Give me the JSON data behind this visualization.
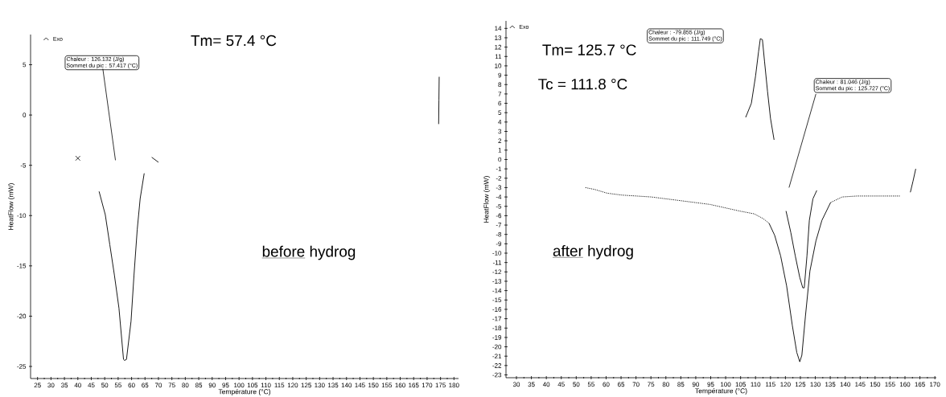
{
  "chart_data": [
    {
      "type": "line",
      "xlabel": "Température (°C)",
      "ylabel": "HeatFlow (mW)",
      "xlim": [
        22.4,
        181.7
      ],
      "ylim": [
        -26.2,
        8
      ],
      "xticks": [
        25,
        30,
        35,
        40,
        45,
        50,
        55,
        60,
        65,
        70,
        75,
        80,
        85,
        90,
        95,
        100,
        105,
        110,
        115,
        120,
        125,
        130,
        135,
        140,
        145,
        150,
        155,
        160,
        165,
        170,
        175,
        180
      ],
      "yticks": [
        -25,
        -20,
        -15,
        -10,
        -5,
        0,
        5
      ],
      "marker": "none",
      "line_style": "solid",
      "series": [
        {
          "color": "#000000",
          "x": [
            47.9,
            50.2,
            51.9,
            53.6,
            55.3,
            57.0,
            57.4,
            58.1,
            59.8,
            60.9,
            62.1,
            63.2,
            64.7
          ],
          "values": [
            -7.6,
            -9.9,
            -12.9,
            -15.9,
            -19.2,
            -24.3,
            -24.4,
            -24.3,
            -20.5,
            -15.9,
            -11.4,
            -8.3,
            -5.8
          ]
        },
        {
          "color": "#000000",
          "x": [
            174.3,
            174.4,
            174.5
          ],
          "values": [
            -0.9,
            1.5,
            3.8
          ]
        },
        {
          "color": "#000000",
          "x": [
            67.5,
            70.0
          ],
          "values": [
            -4.2,
            -4.7
          ]
        },
        {
          "type": "scatter",
          "marker": "cross",
          "color": "#000000",
          "x": [
            40
          ],
          "values": [
            -4.3
          ]
        }
      ],
      "annotations": [
        "Tm= 57.4 °C",
        "before",
        "hydrog",
        "Chaleur :  126.132 (J/g)",
        "Sommet du pic :  57.417 (°C)",
        "Exo"
      ]
    },
    {
      "type": "line",
      "xlabel": "Température (°C)",
      "ylabel": "HeatFlow (mW)",
      "xlim": [
        26.5,
        170.5
      ],
      "ylim": [
        -23.3,
        14.8
      ],
      "xticks": [
        30,
        35,
        40,
        45,
        50,
        55,
        60,
        65,
        70,
        75,
        80,
        85,
        90,
        95,
        100,
        105,
        110,
        115,
        120,
        125,
        130,
        135,
        140,
        145,
        150,
        155,
        160,
        165,
        170
      ],
      "yticks": [
        -23,
        -22,
        -21,
        -20,
        -19,
        -18,
        -17,
        -16,
        -15,
        -14,
        -13,
        -12,
        -11,
        -10,
        -9,
        -8,
        -7,
        -6,
        -5,
        -4,
        -3,
        -2,
        -1,
        0,
        1,
        2,
        3,
        4,
        5,
        6,
        7,
        8,
        9,
        10,
        11,
        12,
        13,
        14
      ],
      "marker": "none",
      "line_style": "solid",
      "series": [
        {
          "color": "#000000",
          "x": [
            106.7,
            108.6,
            110.0,
            111.0,
            111.6,
            112.3,
            113.0,
            114.0,
            115.0,
            116.2
          ],
          "values": [
            4.5,
            6.0,
            8.9,
            11.5,
            12.9,
            12.8,
            10.5,
            7.3,
            4.4,
            2.1
          ]
        },
        {
          "color": "#000000",
          "x": [
            120.2,
            121.8,
            123.3,
            124.8,
            125.8,
            126.3,
            127.2,
            128.0,
            129.2,
            130.5
          ],
          "values": [
            -5.5,
            -7.8,
            -10.3,
            -12.6,
            -13.7,
            -13.7,
            -10.3,
            -6.5,
            -4.2,
            -3.3
          ]
        },
        {
          "color": "#000000",
          "line_style": "dotted",
          "x": [
            53.1,
            56.2,
            60.4,
            65.3,
            75.1,
            85.0,
            94.8,
            104.6,
            109.5,
            112.5,
            114.5
          ],
          "values": [
            -3.0,
            -3.2,
            -3.6,
            -3.8,
            -4.0,
            -4.4,
            -4.8,
            -5.5,
            -5.8,
            -6.3,
            -6.8
          ]
        },
        {
          "color": "#000000",
          "x": [
            114.5,
            116.4,
            118.4,
            120.4,
            122.3,
            123.8,
            124.8,
            125.5,
            126.7,
            128.2,
            130.2,
            132.2,
            135.1
          ],
          "values": [
            -6.8,
            -8.1,
            -10.3,
            -13.5,
            -17.7,
            -20.6,
            -21.6,
            -20.9,
            -16.7,
            -11.9,
            -8.7,
            -6.5,
            -4.6
          ]
        },
        {
          "color": "#000000",
          "line_style": "dotted",
          "x": [
            135.1,
            139.0,
            144.0,
            153.8,
            158.3
          ],
          "values": [
            -4.6,
            -4.0,
            -3.9,
            -3.9,
            -3.9
          ]
        },
        {
          "color": "#000000",
          "x": [
            161.8,
            162.7,
            163.6
          ],
          "values": [
            -3.5,
            -2.3,
            -1.0
          ]
        }
      ],
      "annotations": [
        "Tm= 125.7 °C",
        "Tc = 111.8 °C",
        "after",
        "hydrog",
        "Chaleur :  -79.855 (J/g)",
        "Sommet du pic :  111.749 (°C)",
        "Chaleur :  81.046 (J/g)",
        "Sommet du pic :  125.727 (°C)",
        "Exo"
      ]
    }
  ]
}
